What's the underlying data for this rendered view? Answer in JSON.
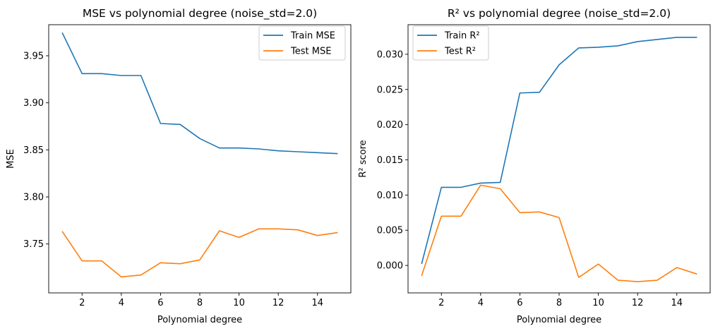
{
  "chart_data": [
    {
      "type": "line",
      "title": "MSE vs polynomial degree (noise_std=2.0)",
      "xlabel": "Polynomial degree",
      "ylabel": "MSE",
      "xlim": [
        0.3,
        15.7
      ],
      "ylim": [
        3.698,
        3.983
      ],
      "xticks": [
        2,
        4,
        6,
        8,
        10,
        12,
        14
      ],
      "xtick_labels": [
        "2",
        "4",
        "6",
        "8",
        "10",
        "12",
        "14"
      ],
      "yticks": [
        3.75,
        3.8,
        3.85,
        3.9,
        3.95
      ],
      "ytick_labels": [
        "3.75",
        "3.80",
        "3.85",
        "3.90",
        "3.95"
      ],
      "legend_position": "top-right",
      "x": [
        1,
        2,
        3,
        4,
        5,
        6,
        7,
        8,
        9,
        10,
        11,
        12,
        13,
        14,
        15
      ],
      "series": [
        {
          "name": "Train MSE",
          "color": "#1f77b4",
          "values": [
            3.974,
            3.931,
            3.931,
            3.929,
            3.929,
            3.878,
            3.877,
            3.862,
            3.852,
            3.852,
            3.851,
            3.849,
            3.848,
            3.847,
            3.846
          ]
        },
        {
          "name": "Test MSE",
          "color": "#ff7f0e",
          "values": [
            3.763,
            3.732,
            3.732,
            3.715,
            3.717,
            3.73,
            3.729,
            3.733,
            3.764,
            3.757,
            3.766,
            3.766,
            3.765,
            3.759,
            3.762
          ]
        }
      ]
    },
    {
      "type": "line",
      "title": "R² vs polynomial degree (noise_std=2.0)",
      "xlabel": "Polynomial degree",
      "ylabel": "R² score",
      "xlim": [
        0.3,
        15.7
      ],
      "ylim": [
        -0.0039,
        0.0342
      ],
      "xticks": [
        2,
        4,
        6,
        8,
        10,
        12,
        14
      ],
      "xtick_labels": [
        "2",
        "4",
        "6",
        "8",
        "10",
        "12",
        "14"
      ],
      "yticks": [
        0.0,
        0.005,
        0.01,
        0.015,
        0.02,
        0.025,
        0.03
      ],
      "ytick_labels": [
        "0.000",
        "0.005",
        "0.010",
        "0.015",
        "0.020",
        "0.025",
        "0.030"
      ],
      "legend_position": "top-left",
      "x": [
        1,
        2,
        3,
        4,
        5,
        6,
        7,
        8,
        9,
        10,
        11,
        12,
        13,
        14,
        15
      ],
      "series": [
        {
          "name": "Train R²",
          "color": "#1f77b4",
          "values": [
            0.0003,
            0.0111,
            0.0111,
            0.0117,
            0.0118,
            0.0245,
            0.0246,
            0.0285,
            0.0309,
            0.031,
            0.0312,
            0.0318,
            0.0321,
            0.0324,
            0.0324
          ]
        },
        {
          "name": "Test R²",
          "color": "#ff7f0e",
          "values": [
            -0.0014,
            0.007,
            0.007,
            0.0114,
            0.0109,
            0.0075,
            0.0076,
            0.0068,
            -0.0017,
            0.0002,
            -0.0021,
            -0.0023,
            -0.0021,
            -0.0003,
            -0.0012
          ]
        }
      ]
    }
  ]
}
